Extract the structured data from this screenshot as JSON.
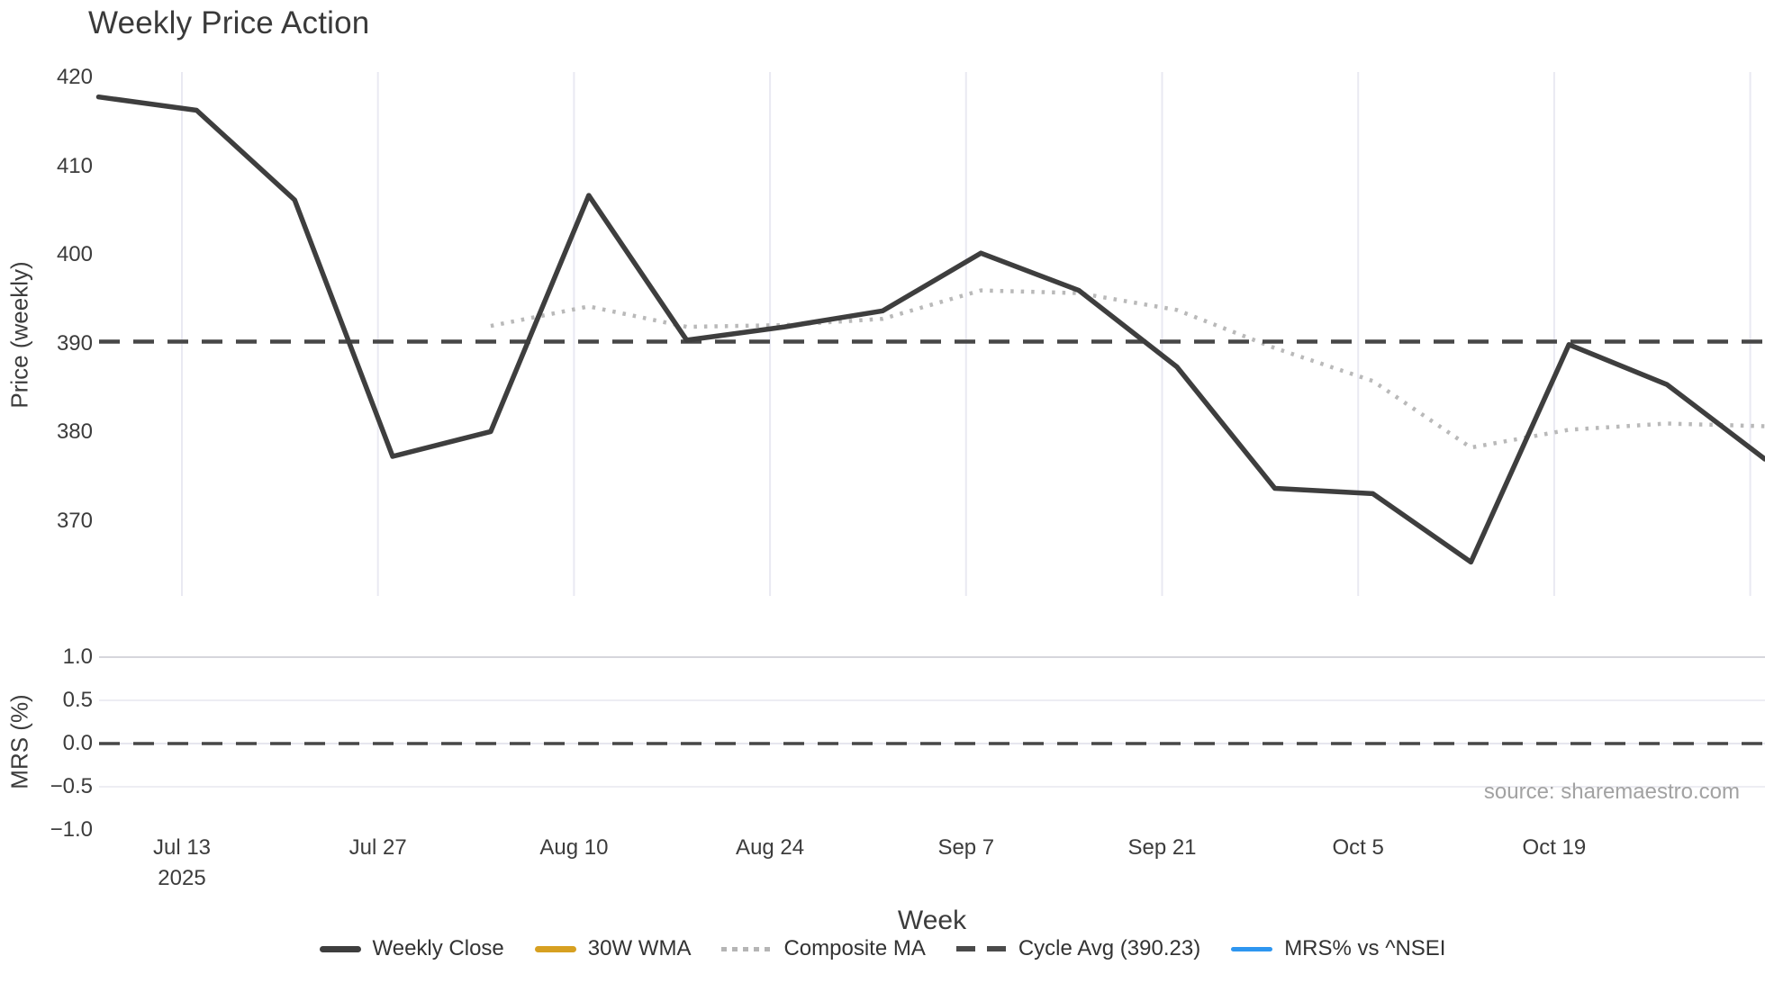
{
  "title": "Weekly Price Action",
  "source_watermark": "source: sharemaestro.com",
  "colors": {
    "weekly_close": "#3e3e3e",
    "wma_30w": "#d7a021",
    "composite_ma": "#b9b9b9",
    "cycle_avg": "#474747",
    "mrs_line": "#2e96f0",
    "grid_vertical": "#e9e9f2",
    "grid_mrs_major": "#d6d6dc",
    "grid_mrs_minor": "#ededf3",
    "text": "#3c3c3c",
    "muted_text": "#a2a2a2"
  },
  "axes": {
    "price": {
      "label": "Price (weekly)",
      "tick_labels": [
        "420",
        "410",
        "400",
        "390",
        "380",
        "370"
      ],
      "tick_values": [
        420,
        410,
        400,
        390,
        380,
        370
      ]
    },
    "mrs": {
      "label": "MRS (%)",
      "tick_labels": [
        "1.0",
        "0.5",
        "0.0",
        "−0.5",
        "−1.0"
      ],
      "tick_values": [
        1.0,
        0.5,
        0.0,
        -0.5,
        -1.0
      ],
      "gridline_values": [
        1.0,
        0.5,
        0.0,
        -0.5
      ]
    },
    "x": {
      "label": "Week",
      "tick_labels": [
        "Jul 13",
        "Jul 27",
        "Aug 10",
        "Aug 24",
        "Sep 7",
        "Sep 21",
        "Oct 5",
        "Oct 19"
      ],
      "year_under_first_tick": "2025",
      "unlabeled_trailing_gridline": true
    }
  },
  "legend": [
    {
      "label": "Weekly Close",
      "swatch": "solid",
      "color": "#3e3e3e"
    },
    {
      "label": "30W WMA",
      "swatch": "solid",
      "color": "#d7a021"
    },
    {
      "label": "Composite MA",
      "swatch": "dotted",
      "color": "#b5b5b5"
    },
    {
      "label": "Cycle Avg (390.23)",
      "swatch": "dashed",
      "color": "#4a4a4a"
    },
    {
      "label": "MRS% vs ^NSEI",
      "swatch": "mrs",
      "color": "#2e96f0"
    }
  ],
  "chart_data": {
    "type": "line",
    "title": "Weekly Price Action",
    "xlabel": "Week",
    "x_points_per_week": 1,
    "x_tick_every_weeks": 2,
    "n_points": 18,
    "panels": [
      {
        "name": "price",
        "ylabel": "Price (weekly)",
        "ylim": [
          361.5,
          420.7
        ],
        "grid": "vertical-only",
        "series": [
          {
            "name": "Weekly Close",
            "style": "solid",
            "color": "#3e3e3e",
            "start_index": 0,
            "values": [
              417.8,
              416.3,
              406.2,
              377.3,
              380.1,
              406.7,
              390.4,
              391.9,
              393.7,
              400.2,
              396.0,
              387.4,
              373.7,
              373.1,
              365.4,
              389.9,
              385.4,
              377.0
            ]
          },
          {
            "name": "Composite MA",
            "style": "dotted",
            "color": "#b9b9b9",
            "start_index": 4,
            "values": [
              392.0,
              394.2,
              391.9,
              392.1,
              392.8,
              396.0,
              395.7,
              393.8,
              389.5,
              385.8,
              378.3,
              380.3,
              381.0,
              380.7
            ]
          },
          {
            "name": "Cycle Avg",
            "style": "dashed",
            "color": "#474747",
            "constant": 390.23
          },
          {
            "name": "30W WMA",
            "style": "solid",
            "color": "#d7a021",
            "values": []
          }
        ]
      },
      {
        "name": "mrs",
        "ylabel": "MRS (%)",
        "ylim": [
          -1.1,
          1.25
        ],
        "grid": "horizontal-only",
        "series": [
          {
            "name": "Zero line",
            "style": "dashed",
            "color": "#474747",
            "constant": 0
          },
          {
            "name": "MRS% vs ^NSEI",
            "style": "solid",
            "color": "#2e96f0",
            "values": []
          }
        ]
      }
    ],
    "legend_entries": [
      "Weekly Close",
      "30W WMA",
      "Composite MA",
      "Cycle Avg (390.23)",
      "MRS% vs ^NSEI"
    ]
  }
}
